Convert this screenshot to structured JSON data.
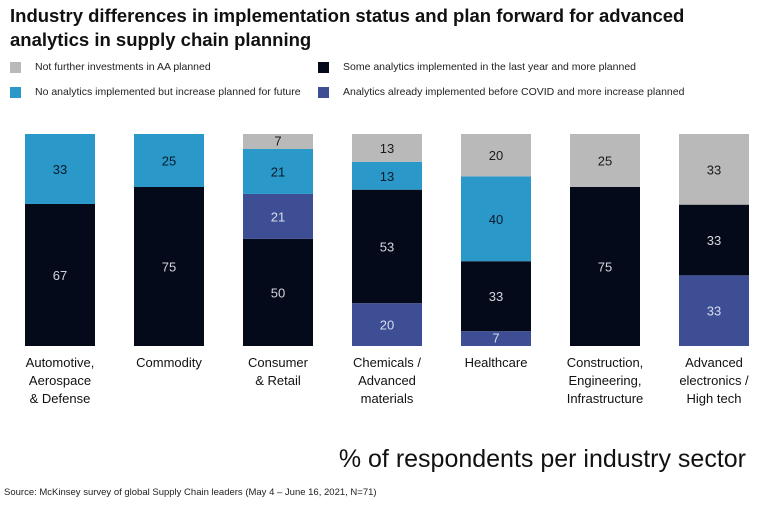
{
  "title": "Industry differences in implementation status and plan forward for advanced analytics in supply chain planning",
  "legend": [
    {
      "label": "Not further investments in AA planned",
      "color": "#b9b9b9"
    },
    {
      "label": "Some analytics implemented in the last year and more planned",
      "color": "#050a1a"
    },
    {
      "label": "No analytics implemented but increase planned for future",
      "color": "#2a98c8"
    },
    {
      "label": "Analytics already implemented before COVID and more increase planned",
      "color": "#3d4e94"
    }
  ],
  "subtitle": "% of respondents per industry sector",
  "source": "Source: McKinsey survey of global Supply Chain leaders (May 4 – June 16, 2021, N=71)",
  "chart_data": {
    "type": "bar",
    "stacked": true,
    "title": "Industry differences in implementation status and plan forward for advanced analytics in supply chain planning",
    "xlabel": "",
    "ylabel": "% of respondents per industry sector",
    "ylim": [
      0,
      100
    ],
    "categories": [
      [
        "Automotive,",
        "Aerospace",
        "& Defense"
      ],
      [
        "Commodity"
      ],
      [
        "Consumer",
        "& Retail"
      ],
      [
        "Chemicals /",
        "Advanced",
        "materials"
      ],
      [
        "Healthcare"
      ],
      [
        "Construction,",
        "Engineering,",
        "Infrastructure"
      ],
      [
        "Advanced",
        "electronics /",
        "High tech"
      ]
    ],
    "series": [
      {
        "name": "Analytics already implemented before COVID and more increase planned",
        "color": "#3d4e94",
        "text_color": "#d8dcee",
        "values": [
          0,
          0,
          0,
          20,
          7,
          0,
          33
        ]
      },
      {
        "name": "Some analytics implemented in the last year and more planned",
        "color": "#050a1a",
        "text_color": "#d4d6dc",
        "values": [
          67,
          75,
          50,
          53,
          33,
          75,
          33
        ]
      },
      {
        "name": "Analytics already implemented before COVID and more increase planned (2)",
        "color": "#3d4e94",
        "text_color": "#d8dcee",
        "values": [
          0,
          0,
          21,
          0,
          0,
          0,
          0
        ]
      },
      {
        "name": "No analytics implemented but increase planned for future",
        "color": "#2a98c8",
        "text_color": "#0a1a2a",
        "values": [
          33,
          25,
          21,
          13,
          40,
          0,
          0
        ]
      },
      {
        "name": "Not further investments in AA planned",
        "color": "#b9b9b9",
        "text_color": "#1a1a1a",
        "values": [
          0,
          0,
          7,
          13,
          20,
          25,
          33
        ]
      }
    ]
  }
}
